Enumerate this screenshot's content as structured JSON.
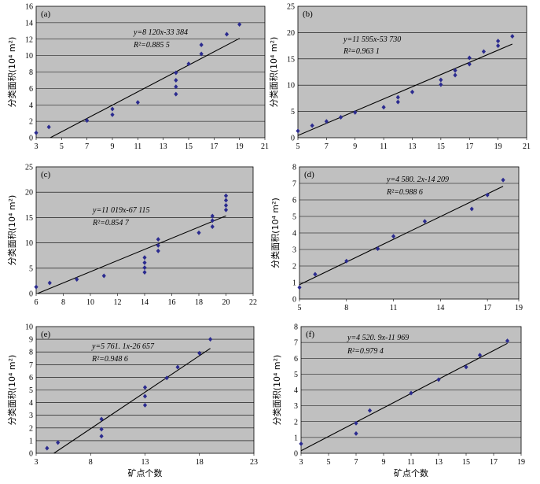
{
  "chart_data": [
    {
      "type": "scatter",
      "panel_label": "(a)",
      "ylabel": "分类面积(10⁴ m²)",
      "xlabel": "",
      "xlim": [
        3,
        21
      ],
      "ylim": [
        0,
        16
      ],
      "xticks": [
        3,
        5,
        7,
        9,
        11,
        13,
        15,
        17,
        19,
        21
      ],
      "yticks": [
        0,
        2,
        4,
        6,
        8,
        10,
        12,
        14,
        16
      ],
      "grid": true,
      "equation": "y=8 120x-33 384",
      "r2": "R²=0.885 5",
      "trend": {
        "slope": 0.812,
        "intercept": -3.3384
      },
      "points": [
        [
          3,
          0.6
        ],
        [
          4,
          1.3
        ],
        [
          7,
          2.1
        ],
        [
          9,
          2.8
        ],
        [
          9,
          3.5
        ],
        [
          11,
          4.3
        ],
        [
          14,
          5.3
        ],
        [
          14,
          6.2
        ],
        [
          14,
          7.0
        ],
        [
          14,
          7.9
        ],
        [
          15,
          9.0
        ],
        [
          16,
          10.2
        ],
        [
          16,
          11.3
        ],
        [
          18,
          12.6
        ],
        [
          19,
          13.8
        ]
      ]
    },
    {
      "type": "scatter",
      "panel_label": "(b)",
      "ylabel": "分类面积(10⁴ m²)",
      "xlabel": "",
      "xlim": [
        5,
        21
      ],
      "ylim": [
        0,
        25
      ],
      "xticks": [
        5,
        7,
        9,
        11,
        13,
        15,
        17,
        19,
        21
      ],
      "yticks": [
        0,
        5,
        10,
        15,
        20,
        25
      ],
      "grid": true,
      "equation": "y=11 595x-53 730",
      "r2": "R²=0.963 1",
      "trend": {
        "slope": 1.1595,
        "intercept": -5.373
      },
      "points": [
        [
          5,
          1.3
        ],
        [
          6,
          2.3
        ],
        [
          7,
          3.1
        ],
        [
          8,
          3.9
        ],
        [
          9,
          4.8
        ],
        [
          11,
          5.8
        ],
        [
          12,
          6.8
        ],
        [
          12,
          7.7
        ],
        [
          13,
          8.7
        ],
        [
          15,
          10.1
        ],
        [
          15,
          11.0
        ],
        [
          16,
          11.9
        ],
        [
          16,
          12.8
        ],
        [
          17,
          14.0
        ],
        [
          17,
          15.2
        ],
        [
          18,
          16.4
        ],
        [
          19,
          17.5
        ],
        [
          19,
          18.4
        ],
        [
          20,
          19.3
        ]
      ]
    },
    {
      "type": "scatter",
      "panel_label": "(c)",
      "ylabel": "分类面积(10⁴ m²)",
      "xlabel": "",
      "xlim": [
        6,
        22
      ],
      "ylim": [
        0,
        25
      ],
      "xticks": [
        6,
        8,
        10,
        12,
        14,
        16,
        18,
        20,
        22
      ],
      "yticks": [
        0,
        5,
        10,
        15,
        20,
        25
      ],
      "grid": true,
      "equation": "y=11 019x-67 115",
      "r2": "R²=0.854 7",
      "trend": {
        "slope": 1.1019,
        "intercept": -6.7115
      },
      "points": [
        [
          6,
          1.3
        ],
        [
          7,
          2.1
        ],
        [
          9,
          2.8
        ],
        [
          11,
          3.5
        ],
        [
          14,
          4.2
        ],
        [
          14,
          5.1
        ],
        [
          14,
          6.1
        ],
        [
          14,
          7.1
        ],
        [
          15,
          8.4
        ],
        [
          15,
          9.5
        ],
        [
          15,
          10.7
        ],
        [
          18,
          12.0
        ],
        [
          19,
          13.2
        ],
        [
          19,
          14.4
        ],
        [
          19,
          15.3
        ],
        [
          20,
          16.5
        ],
        [
          20,
          17.4
        ],
        [
          20,
          18.4
        ],
        [
          20,
          19.3
        ]
      ]
    },
    {
      "type": "scatter",
      "panel_label": "(d)",
      "ylabel": "分类面积(10⁴ m²)",
      "xlabel": "",
      "xlim": [
        5,
        19
      ],
      "ylim": [
        0,
        8
      ],
      "xticks": [
        5,
        8,
        11,
        14,
        17,
        19
      ],
      "yticks": [
        0,
        1,
        2,
        3,
        4,
        5,
        6,
        7,
        8
      ],
      "grid": true,
      "equation": "y=4 580. 2x-14 209",
      "r2": "R²=0.988 6",
      "trend": {
        "slope": 0.45802,
        "intercept": -1.4209
      },
      "points": [
        [
          5,
          0.7
        ],
        [
          6,
          1.5
        ],
        [
          8,
          2.3
        ],
        [
          10,
          3.05
        ],
        [
          11,
          3.8
        ],
        [
          13,
          4.7
        ],
        [
          16,
          5.45
        ],
        [
          17,
          6.3
        ],
        [
          18,
          7.2
        ]
      ]
    },
    {
      "type": "scatter",
      "panel_label": "(e)",
      "ylabel": "分类面积(10⁴ m²)",
      "xlabel": "矿点个数",
      "xlim": [
        3,
        23
      ],
      "ylim": [
        0,
        10
      ],
      "xticks": [
        3,
        8,
        13,
        18,
        23
      ],
      "yticks": [
        0,
        1,
        2,
        3,
        4,
        5,
        6,
        7,
        8,
        9,
        10
      ],
      "grid": true,
      "equation": "y=5 761. 1x-26 657",
      "r2": "R²=0.948 6",
      "trend": {
        "slope": 0.57611,
        "intercept": -2.6657
      },
      "points": [
        [
          4,
          0.4
        ],
        [
          5,
          0.85
        ],
        [
          9,
          1.35
        ],
        [
          9,
          1.9
        ],
        [
          9,
          2.7
        ],
        [
          13,
          3.8
        ],
        [
          13,
          4.5
        ],
        [
          13,
          5.2
        ],
        [
          15,
          5.95
        ],
        [
          16,
          6.8
        ],
        [
          18,
          7.9
        ],
        [
          19,
          9.0
        ]
      ]
    },
    {
      "type": "scatter",
      "panel_label": "(f)",
      "ylabel": "分类面积(10⁴ m²)",
      "xlabel": "矿点个数",
      "xlim": [
        3,
        19
      ],
      "ylim": [
        0,
        8
      ],
      "xticks": [
        3,
        5,
        7,
        9,
        11,
        13,
        15,
        17,
        19
      ],
      "yticks": [
        0,
        1,
        2,
        3,
        4,
        5,
        6,
        7,
        8
      ],
      "grid": true,
      "equation": "y=4 520. 9x-11 969",
      "r2": "R²=0.979 4",
      "trend": {
        "slope": 0.45209,
        "intercept": -1.1969
      },
      "points": [
        [
          3,
          0.6
        ],
        [
          7,
          1.25
        ],
        [
          7,
          1.9
        ],
        [
          8,
          2.7
        ],
        [
          11,
          3.8
        ],
        [
          13,
          4.65
        ],
        [
          15,
          5.45
        ],
        [
          16,
          6.2
        ],
        [
          18,
          7.1
        ]
      ]
    }
  ],
  "colors": {
    "plot_bg": "#c0c0c0",
    "marker": "#2b2b8f",
    "line": "#000000",
    "grid": "#000000"
  }
}
